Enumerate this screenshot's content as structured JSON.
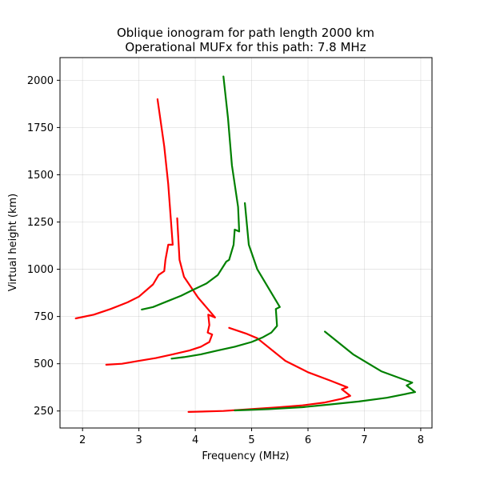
{
  "chart_data": {
    "type": "line",
    "title_line1": "Oblique ionogram for path length 2000 km",
    "title_line2": "Operational MUFx for this path: 7.8 MHz",
    "xlabel": "Frequency (MHz)",
    "ylabel": "Virtual height (km)",
    "xlim": [
      1.6,
      8.2
    ],
    "ylim": [
      160,
      2120
    ],
    "xticks": [
      2,
      3,
      4,
      5,
      6,
      7,
      8
    ],
    "yticks": [
      250,
      500,
      750,
      1000,
      1250,
      1500,
      1750,
      2000
    ],
    "grid": true,
    "series": [
      {
        "color": "#ff0000",
        "points": [
          [
            3.88,
            245
          ],
          [
            4.5,
            250
          ],
          [
            5.0,
            260
          ],
          [
            5.5,
            270
          ],
          [
            5.9,
            280
          ],
          [
            6.3,
            295
          ],
          [
            6.6,
            315
          ],
          [
            6.75,
            330
          ],
          [
            6.6,
            365
          ],
          [
            6.7,
            375
          ],
          [
            6.4,
            410
          ],
          [
            6.0,
            455
          ],
          [
            5.6,
            515
          ],
          [
            5.1,
            635
          ],
          [
            4.9,
            660
          ],
          [
            4.6,
            690
          ]
        ]
      },
      {
        "color": "#ff0000",
        "points": [
          [
            2.42,
            495
          ],
          [
            2.7,
            500
          ],
          [
            3.0,
            515
          ],
          [
            3.3,
            530
          ],
          [
            3.6,
            550
          ],
          [
            3.9,
            570
          ],
          [
            4.1,
            590
          ],
          [
            4.25,
            615
          ],
          [
            4.3,
            655
          ],
          [
            4.22,
            665
          ],
          [
            4.25,
            705
          ],
          [
            4.23,
            760
          ],
          [
            4.35,
            745
          ],
          [
            4.05,
            850
          ],
          [
            3.8,
            960
          ],
          [
            3.72,
            1050
          ],
          [
            3.68,
            1270
          ]
        ]
      },
      {
        "color": "#ff0000",
        "points": [
          [
            1.88,
            740
          ],
          [
            2.2,
            760
          ],
          [
            2.5,
            790
          ],
          [
            2.8,
            825
          ],
          [
            3.0,
            855
          ],
          [
            3.25,
            920
          ],
          [
            3.35,
            970
          ],
          [
            3.45,
            990
          ],
          [
            3.47,
            1050
          ],
          [
            3.52,
            1130
          ],
          [
            3.6,
            1130
          ],
          [
            3.57,
            1250
          ],
          [
            3.52,
            1450
          ],
          [
            3.45,
            1650
          ],
          [
            3.33,
            1900
          ]
        ]
      },
      {
        "color": "#008000",
        "points": [
          [
            3.58,
            527
          ],
          [
            3.8,
            535
          ],
          [
            4.1,
            550
          ],
          [
            4.4,
            570
          ],
          [
            4.7,
            590
          ],
          [
            5.0,
            615
          ],
          [
            5.2,
            640
          ],
          [
            5.35,
            665
          ],
          [
            5.45,
            700
          ],
          [
            5.43,
            790
          ],
          [
            5.5,
            800
          ],
          [
            5.3,
            900
          ],
          [
            5.1,
            1000
          ],
          [
            4.95,
            1130
          ],
          [
            4.88,
            1350
          ]
        ]
      },
      {
        "color": "#008000",
        "points": [
          [
            3.05,
            787
          ],
          [
            3.25,
            800
          ],
          [
            3.5,
            830
          ],
          [
            3.75,
            860
          ],
          [
            3.95,
            890
          ],
          [
            4.2,
            925
          ],
          [
            4.4,
            970
          ],
          [
            4.55,
            1040
          ],
          [
            4.6,
            1050
          ],
          [
            4.68,
            1130
          ],
          [
            4.7,
            1210
          ],
          [
            4.78,
            1200
          ],
          [
            4.76,
            1330
          ],
          [
            4.65,
            1550
          ],
          [
            4.58,
            1800
          ],
          [
            4.5,
            2020
          ]
        ]
      },
      {
        "color": "#008000",
        "points": [
          [
            4.7,
            253
          ],
          [
            5.3,
            260
          ],
          [
            5.9,
            270
          ],
          [
            6.4,
            285
          ],
          [
            6.9,
            300
          ],
          [
            7.4,
            320
          ],
          [
            7.9,
            350
          ],
          [
            7.75,
            385
          ],
          [
            7.85,
            400
          ],
          [
            7.3,
            460
          ],
          [
            6.8,
            550
          ],
          [
            6.3,
            670
          ]
        ]
      }
    ]
  }
}
